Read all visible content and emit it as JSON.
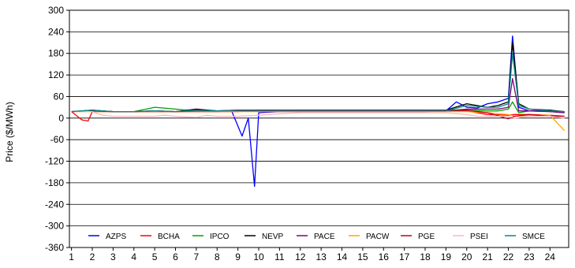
{
  "chart_data": {
    "type": "line",
    "title": "",
    "xlabel": "",
    "ylabel": "Price ($/MWh)",
    "ylim": [
      -360,
      300
    ],
    "y_ticks": [
      300,
      240,
      180,
      120,
      60,
      0,
      -60,
      -120,
      -180,
      -240,
      -300,
      -360
    ],
    "xlim": [
      0.9,
      24.9
    ],
    "x_ticks": [
      1,
      2,
      3,
      4,
      5,
      6,
      7,
      8,
      9,
      10,
      11,
      12,
      13,
      14,
      15,
      16,
      17,
      18,
      19,
      20,
      21,
      22,
      23,
      24
    ],
    "grid": "horizontal",
    "legend_position": "bottom-inside",
    "series": [
      {
        "name": "AZPS",
        "color": "#0000ff",
        "x": [
          1,
          2,
          3,
          4,
          5,
          6,
          7,
          8,
          8.7,
          9.2,
          9.5,
          9.8,
          10,
          11,
          12,
          13,
          14,
          15,
          16,
          17,
          18,
          19,
          19.5,
          20,
          20.5,
          21,
          21.5,
          22,
          22.2,
          22.5,
          23,
          24,
          24.7
        ],
        "y": [
          18,
          20,
          18,
          18,
          18,
          18,
          18,
          18,
          20,
          -50,
          0,
          -190,
          15,
          18,
          18,
          18,
          18,
          18,
          18,
          18,
          18,
          20,
          45,
          30,
          28,
          40,
          45,
          55,
          228,
          30,
          20,
          22,
          15
        ]
      },
      {
        "name": "BCHA",
        "color": "#ff0000",
        "x": [
          1,
          1.5,
          1.8,
          2,
          3,
          4,
          5,
          6,
          7,
          8,
          9,
          10,
          11,
          12,
          13,
          14,
          15,
          16,
          17,
          18,
          19,
          20,
          21,
          22,
          22.3,
          23,
          24,
          24.7
        ],
        "y": [
          18,
          -5,
          -8,
          18,
          18,
          18,
          18,
          18,
          18,
          18,
          18,
          22,
          22,
          22,
          22,
          22,
          22,
          22,
          22,
          22,
          22,
          20,
          10,
          8,
          10,
          10,
          8,
          5
        ]
      },
      {
        "name": "IPCO",
        "color": "#00a000",
        "x": [
          1,
          2,
          3,
          4,
          4.6,
          5,
          5.4,
          6,
          6.5,
          7,
          8,
          9,
          10,
          11,
          12,
          13,
          14,
          15,
          16,
          17,
          18,
          19,
          20,
          21,
          21.5,
          22,
          22.2,
          22.5,
          23,
          24,
          24.7
        ],
        "y": [
          18,
          22,
          18,
          18,
          25,
          30,
          28,
          25,
          22,
          22,
          20,
          20,
          20,
          20,
          20,
          20,
          20,
          20,
          20,
          20,
          20,
          20,
          22,
          20,
          20,
          25,
          45,
          15,
          20,
          18,
          15
        ]
      },
      {
        "name": "NEVP",
        "color": "#000000",
        "x": [
          1,
          2,
          3,
          4,
          5,
          6,
          7,
          8,
          9,
          10,
          11,
          12,
          13,
          14,
          15,
          16,
          17,
          18,
          19,
          20,
          21,
          21.5,
          22,
          22.2,
          22.5,
          23,
          24,
          24.7
        ],
        "y": [
          18,
          22,
          18,
          18,
          20,
          18,
          25,
          20,
          22,
          22,
          22,
          22,
          22,
          22,
          22,
          22,
          22,
          22,
          22,
          40,
          30,
          35,
          45,
          210,
          40,
          25,
          22,
          18
        ]
      },
      {
        "name": "PACE",
        "color": "#800080",
        "x": [
          1,
          2,
          3,
          4,
          5,
          6,
          7,
          8,
          9,
          10,
          11,
          12,
          13,
          14,
          15,
          16,
          17,
          18,
          19,
          20,
          21,
          21.5,
          22,
          22.2,
          22.5,
          23,
          24,
          24.7
        ],
        "y": [
          18,
          20,
          18,
          18,
          20,
          18,
          22,
          20,
          20,
          20,
          20,
          20,
          20,
          20,
          20,
          20,
          20,
          20,
          20,
          25,
          25,
          25,
          30,
          110,
          20,
          20,
          18,
          15
        ]
      },
      {
        "name": "PACW",
        "color": "#ffa500",
        "x": [
          1,
          2,
          3,
          4,
          5,
          6,
          7,
          8,
          9,
          10,
          11,
          12,
          13,
          14,
          15,
          16,
          17,
          18,
          19,
          20,
          21,
          22,
          22.3,
          23,
          24,
          24.7
        ],
        "y": [
          18,
          18,
          18,
          18,
          18,
          18,
          18,
          18,
          18,
          18,
          18,
          18,
          18,
          18,
          18,
          18,
          18,
          18,
          18,
          18,
          15,
          10,
          5,
          8,
          8,
          -35
        ]
      },
      {
        "name": "PGE",
        "color": "#c00020",
        "x": [
          1,
          2,
          3,
          4,
          5,
          6,
          7,
          8,
          9,
          10,
          11,
          12,
          13,
          14,
          15,
          16,
          17,
          18,
          19,
          20,
          21,
          22,
          22.3,
          23,
          24,
          24.7
        ],
        "y": [
          18,
          20,
          18,
          18,
          20,
          18,
          20,
          20,
          22,
          22,
          22,
          22,
          22,
          22,
          22,
          22,
          22,
          22,
          22,
          22,
          15,
          -2,
          5,
          10,
          5,
          5
        ]
      },
      {
        "name": "PSEI",
        "color": "#ffb6c1",
        "x": [
          1,
          2,
          2.5,
          3,
          4,
          5,
          5.5,
          6,
          7,
          7.5,
          8,
          9,
          10,
          11,
          12,
          13,
          14,
          15,
          16,
          17,
          18,
          19,
          20,
          20.5,
          21,
          22,
          22.3,
          23,
          24,
          24.7
        ],
        "y": [
          18,
          18,
          8,
          5,
          5,
          5,
          8,
          5,
          2,
          8,
          5,
          5,
          8,
          12,
          15,
          15,
          15,
          15,
          15,
          15,
          15,
          15,
          10,
          5,
          5,
          5,
          0,
          5,
          5,
          0
        ]
      },
      {
        "name": "SMCE",
        "color": "#008b8b",
        "x": [
          1,
          2,
          3,
          4,
          5,
          6,
          7,
          8,
          9,
          10,
          11,
          12,
          13,
          14,
          15,
          16,
          17,
          18,
          19,
          20,
          21,
          21.5,
          22,
          22.2,
          22.5,
          23,
          24,
          24.7
        ],
        "y": [
          18,
          22,
          18,
          18,
          20,
          18,
          22,
          20,
          20,
          20,
          20,
          20,
          20,
          20,
          20,
          20,
          20,
          20,
          20,
          35,
          30,
          30,
          40,
          180,
          35,
          25,
          20,
          18
        ]
      }
    ]
  }
}
